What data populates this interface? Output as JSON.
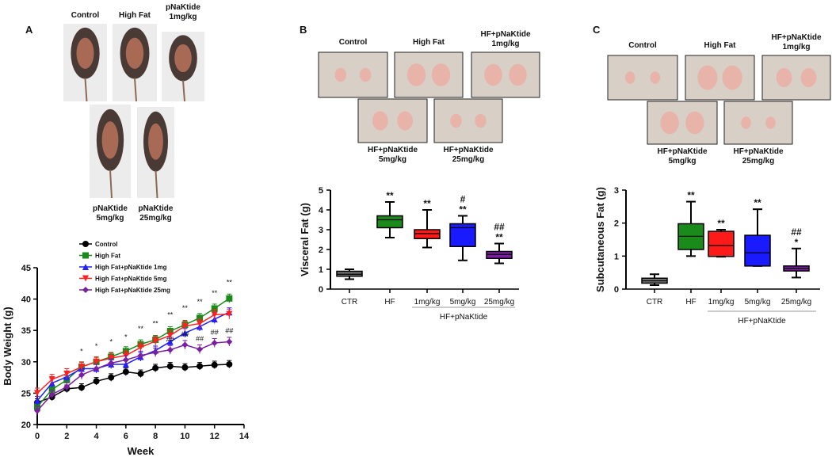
{
  "panels": {
    "A": {
      "letter": "A",
      "photos": [
        {
          "label_lines": [
            "Control"
          ]
        },
        {
          "label_lines": [
            "High Fat"
          ]
        },
        {
          "label_lines": [
            "pNaKtide",
            "1mg/kg"
          ]
        },
        {
          "label_lines": [
            "pNaKtide",
            "5mg/kg"
          ]
        },
        {
          "label_lines": [
            "pNaKtide",
            "25mg/kg"
          ]
        }
      ]
    },
    "B": {
      "letter": "B",
      "photos": [
        {
          "label_lines": [
            "Control"
          ]
        },
        {
          "label_lines": [
            "High Fat"
          ]
        },
        {
          "label_lines": [
            "HF+pNaKtide",
            "1mg/kg"
          ]
        },
        {
          "label_lines": [
            "HF+pNaKtide",
            "5mg/kg"
          ]
        },
        {
          "label_lines": [
            "HF+pNaKtide",
            "25mg/kg"
          ]
        }
      ]
    },
    "C": {
      "letter": "C",
      "photos": [
        {
          "label_lines": [
            "Control"
          ]
        },
        {
          "label_lines": [
            "High Fat"
          ]
        },
        {
          "label_lines": [
            "HF+pNaKtide",
            "1mg/kg"
          ]
        },
        {
          "label_lines": [
            "HF+pNaKtide",
            "5mg/kg"
          ]
        },
        {
          "label_lines": [
            "HF+pNaKtide",
            "25mg/kg"
          ]
        }
      ]
    }
  },
  "chart_data": [
    {
      "type": "line",
      "title": "",
      "xlabel": "Week",
      "ylabel": "Body Weight (g)",
      "xlim": [
        0,
        14
      ],
      "ylim": [
        20,
        45
      ],
      "xticks": [
        0,
        2,
        4,
        6,
        8,
        10,
        12,
        14
      ],
      "yticks": [
        20,
        25,
        30,
        35,
        40,
        45
      ],
      "legend_position": "top-left",
      "x": [
        0,
        1,
        2,
        3,
        4,
        5,
        6,
        7,
        8,
        9,
        10,
        11,
        12,
        13
      ],
      "series": [
        {
          "name": "Control",
          "color": "#000000",
          "marker": "circle",
          "sem": 0.6,
          "values": [
            23.5,
            24.4,
            25.7,
            25.9,
            26.9,
            27.5,
            28.4,
            28.1,
            29.0,
            29.3,
            29.1,
            29.3,
            29.5,
            29.6
          ]
        },
        {
          "name": "High Fat",
          "color": "#1a8a1a",
          "marker": "square",
          "sem": 0.7,
          "values": [
            22.8,
            25.6,
            27.1,
            29.2,
            30.0,
            30.8,
            31.7,
            32.8,
            33.5,
            34.9,
            35.9,
            37.0,
            38.5,
            40.1
          ]
        },
        {
          "name": "High Fat+pNaKtide 1mg",
          "color": "#1f1fff",
          "marker": "triangle-up",
          "sem": 0.7,
          "values": [
            23.8,
            26.6,
            27.6,
            28.9,
            28.9,
            29.6,
            29.6,
            30.8,
            31.8,
            33.2,
            34.6,
            35.6,
            36.8,
            37.9
          ]
        },
        {
          "name": "High Fat+pNaKtide 5mg",
          "color": "#ff2020",
          "marker": "triangle-down",
          "sem": 0.8,
          "values": [
            25.0,
            27.2,
            28.1,
            29.2,
            30.0,
            30.6,
            31.0,
            32.3,
            33.3,
            34.2,
            35.7,
            36.1,
            37.5,
            37.6
          ]
        },
        {
          "name": "High Fat+pNaKtide 25mg",
          "color": "#7a1fa0",
          "marker": "diamond",
          "sem": 0.7,
          "values": [
            22.2,
            24.8,
            26.0,
            27.9,
            28.9,
            29.8,
            30.3,
            31.0,
            31.5,
            31.9,
            32.7,
            32.0,
            33.0,
            33.2
          ]
        }
      ],
      "annotations": [
        {
          "x": 3,
          "y": 31.3,
          "text": "*"
        },
        {
          "x": 4,
          "y": 32.1,
          "text": "*"
        },
        {
          "x": 5,
          "y": 32.8,
          "text": "*"
        },
        {
          "x": 6,
          "y": 33.6,
          "text": "*"
        },
        {
          "x": 7,
          "y": 34.9,
          "text": "**"
        },
        {
          "x": 8,
          "y": 35.7,
          "text": "**"
        },
        {
          "x": 9,
          "y": 37.1,
          "text": "**"
        },
        {
          "x": 10,
          "y": 38.2,
          "text": "**"
        },
        {
          "x": 11,
          "y": 39.2,
          "text": "**"
        },
        {
          "x": 12,
          "y": 40.6,
          "text": "**"
        },
        {
          "x": 13,
          "y": 42.3,
          "text": "**"
        },
        {
          "x": 9,
          "y": 33.2,
          "text": "##"
        },
        {
          "x": 10,
          "y": 34.0,
          "text": "##"
        },
        {
          "x": 11,
          "y": 33.3,
          "text": "##"
        },
        {
          "x": 12,
          "y": 34.3,
          "text": "##"
        },
        {
          "x": 13,
          "y": 34.6,
          "text": "##"
        }
      ]
    },
    {
      "type": "box",
      "title": "",
      "xlabel": "",
      "ylabel": "Visceral Fat (g)",
      "ylim": [
        0,
        5
      ],
      "yticks": [
        0,
        1,
        2,
        3,
        4,
        5
      ],
      "categories": [
        "CTR",
        "HF",
        "1mg/kg",
        "5mg/kg",
        "25mg/kg"
      ],
      "group_label": "HF+pNaKtide",
      "boxes": [
        {
          "min": 0.5,
          "q1": 0.65,
          "median": 0.75,
          "q3": 0.9,
          "max": 1.0,
          "color": "#707070",
          "marks": []
        },
        {
          "min": 2.6,
          "q1": 3.1,
          "median": 3.5,
          "q3": 3.7,
          "max": 4.4,
          "color": "#1a8a1a",
          "marks": [
            "**"
          ]
        },
        {
          "min": 2.1,
          "q1": 2.55,
          "median": 2.8,
          "q3": 3.0,
          "max": 4.0,
          "color": "#ff1a1a",
          "marks": [
            "**"
          ]
        },
        {
          "min": 1.45,
          "q1": 2.15,
          "median": 3.1,
          "q3": 3.3,
          "max": 3.7,
          "color": "#1a1aff",
          "marks": [
            "**",
            "#"
          ]
        },
        {
          "min": 1.3,
          "q1": 1.55,
          "median": 1.75,
          "q3": 1.9,
          "max": 2.3,
          "color": "#7a1fa0",
          "marks": [
            "**",
            "##"
          ]
        }
      ]
    },
    {
      "type": "box",
      "title": "",
      "xlabel": "",
      "ylabel": "Subcutaneous Fat (g)",
      "ylim": [
        0,
        3
      ],
      "yticks": [
        0,
        1,
        2,
        3
      ],
      "categories": [
        "CTR",
        "HF",
        "1mg/kg",
        "5mg/kg",
        "25mg/kg"
      ],
      "group_label": "HF+pNaKtide",
      "boxes": [
        {
          "min": 0.12,
          "q1": 0.18,
          "median": 0.25,
          "q3": 0.33,
          "max": 0.45,
          "color": "#707070",
          "marks": []
        },
        {
          "min": 1.0,
          "q1": 1.2,
          "median": 1.6,
          "q3": 1.98,
          "max": 2.65,
          "color": "#1a8a1a",
          "marks": [
            "**"
          ]
        },
        {
          "min": 0.98,
          "q1": 0.99,
          "median": 1.32,
          "q3": 1.75,
          "max": 1.8,
          "color": "#ff1a1a",
          "marks": [
            "**"
          ]
        },
        {
          "min": 0.7,
          "q1": 0.7,
          "median": 1.1,
          "q3": 1.63,
          "max": 2.42,
          "color": "#1a1aff",
          "marks": [
            "**"
          ]
        },
        {
          "min": 0.35,
          "q1": 0.55,
          "median": 0.63,
          "q3": 0.7,
          "max": 1.23,
          "color": "#7a1fa0",
          "marks": [
            "*",
            "##"
          ]
        }
      ]
    }
  ]
}
